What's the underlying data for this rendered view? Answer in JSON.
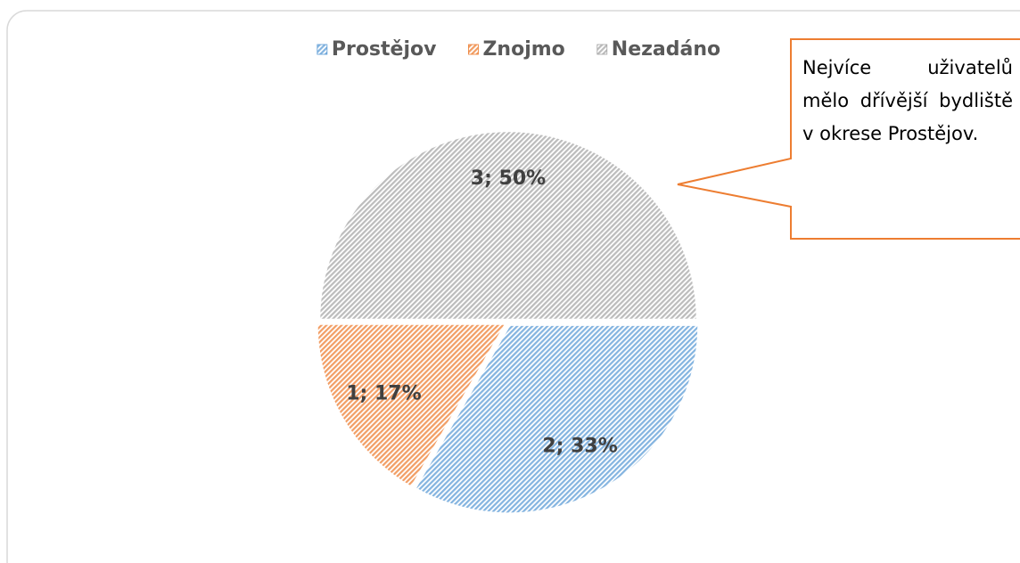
{
  "chart_data": {
    "type": "pie",
    "categories": [
      "Prostějov",
      "Znojmo",
      "Nezadáno"
    ],
    "values": [
      2,
      1,
      3
    ],
    "value_labels": [
      "2; 33%",
      "1; 17%",
      "3; 50%"
    ],
    "colors": [
      "#5b9bd5",
      "#ed7d31",
      "#a5a5a5"
    ],
    "legend": "top",
    "annotation": "Nejvíce uživatelů mělo dřívější bydliště v okrese Prostějov."
  }
}
